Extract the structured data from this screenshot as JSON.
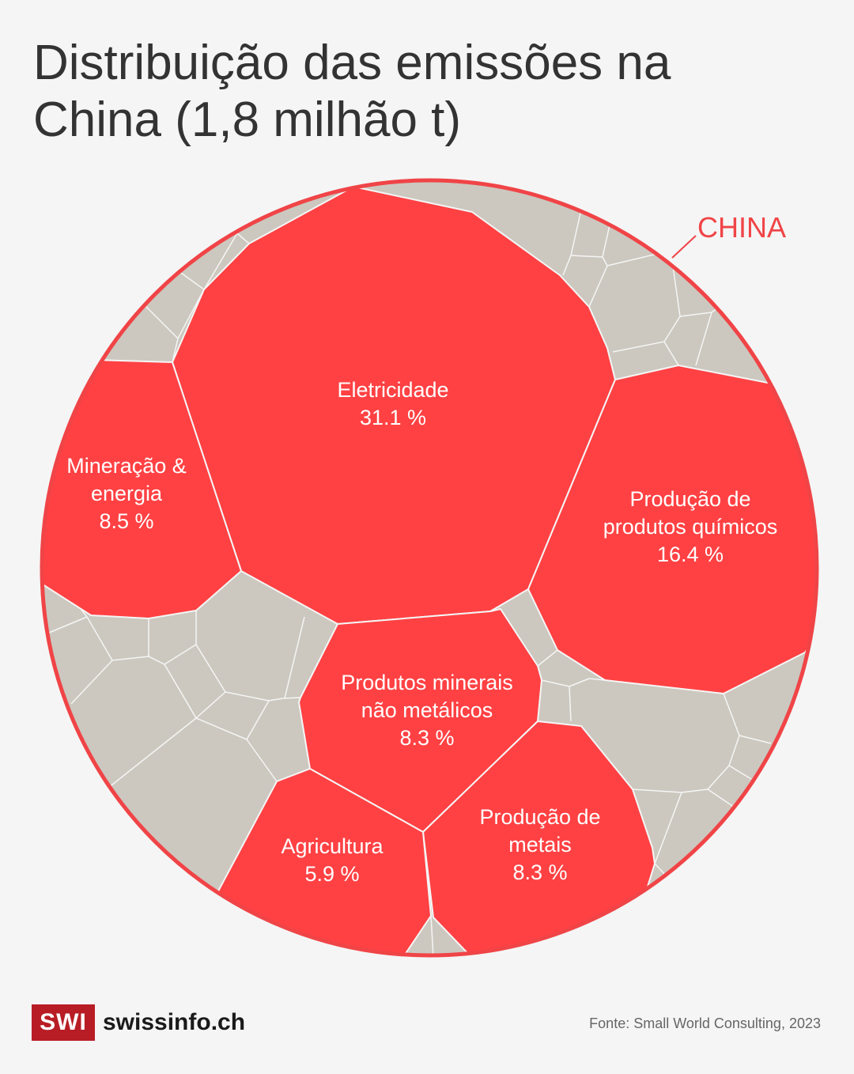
{
  "title_line1": "Distribuição das emissões na",
  "title_line2": "China (1,8 milhão t)",
  "chart_data": {
    "type": "voronoi-treemap",
    "title": "Distribuição das emissões na China (1,8 milhão t)",
    "unit": "%",
    "region_label": "CHINA",
    "sectors": [
      {
        "label": [
          "Eletricidade"
        ],
        "value": 31.1,
        "value_text": "31.1 %"
      },
      {
        "label": [
          "Produção de",
          "produtos químicos"
        ],
        "value": 16.4,
        "value_text": "16.4 %"
      },
      {
        "label": [
          "Mineração &",
          "energia"
        ],
        "value": 8.5,
        "value_text": "8.5 %"
      },
      {
        "label": [
          "Produtos minerais",
          "não metálicos"
        ],
        "value": 8.3,
        "value_text": "8.3 %"
      },
      {
        "label": [
          "Produção de",
          "metais"
        ],
        "value": 8.3,
        "value_text": "8.3 %"
      },
      {
        "label": [
          "Agricultura"
        ],
        "value": 5.9,
        "value_text": "5.9 %"
      }
    ]
  },
  "colors": {
    "highlight": "#ff4143",
    "other": "#ccc8bf",
    "ring": "#f04447",
    "background": "#f5f5f5"
  },
  "footer": {
    "logo_box": "SWI",
    "logo_site": "swissinfo.ch",
    "source": "Fonte: Small World Consulting, 2023"
  }
}
